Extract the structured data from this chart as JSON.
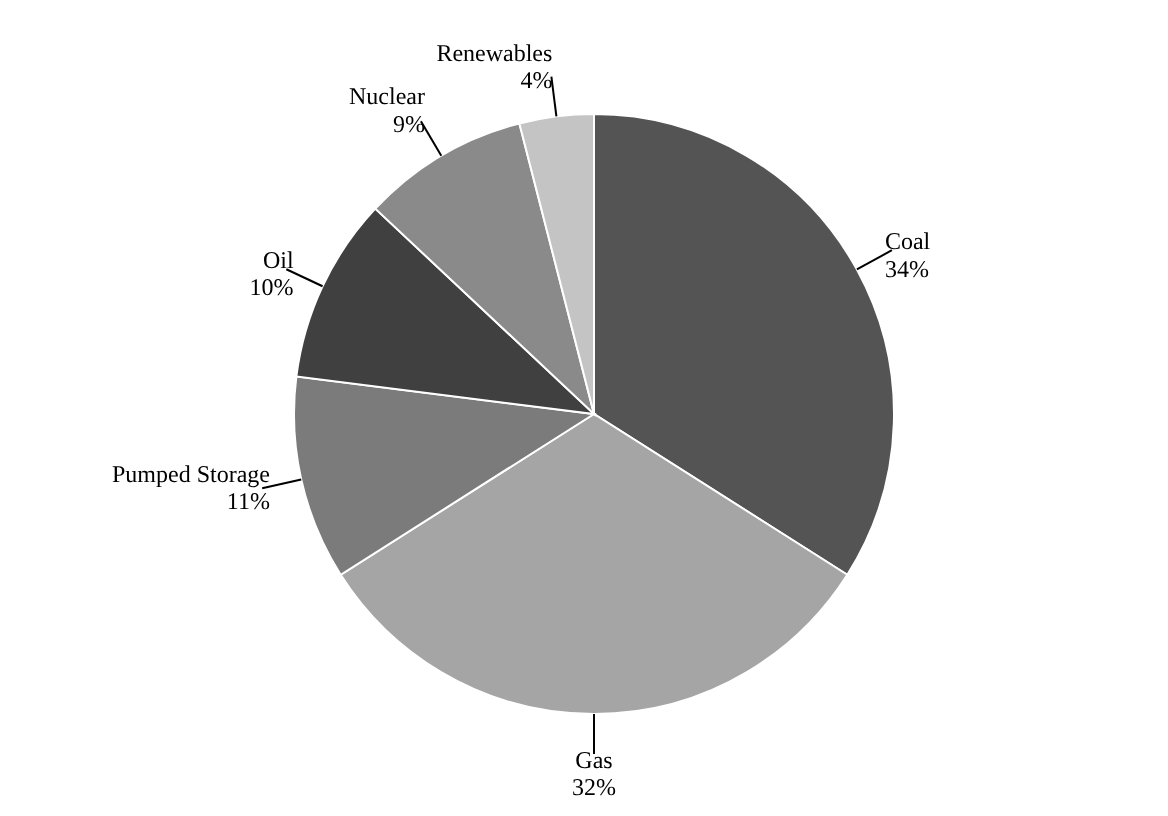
{
  "chart_data": {
    "type": "pie",
    "categories": [
      "Coal",
      "Gas",
      "Pumped Storage",
      "Oil",
      "Nuclear",
      "Renewables"
    ],
    "values": [
      34,
      32,
      11,
      10,
      9,
      4
    ],
    "colors": [
      "#545454",
      "#a5a5a5",
      "#7b7b7b",
      "#404040",
      "#8a8a8a",
      "#c4c4c4"
    ],
    "value_labels": [
      "34%",
      "32%",
      "11%",
      "10%",
      "9%",
      "4%"
    ],
    "legend": false
  }
}
